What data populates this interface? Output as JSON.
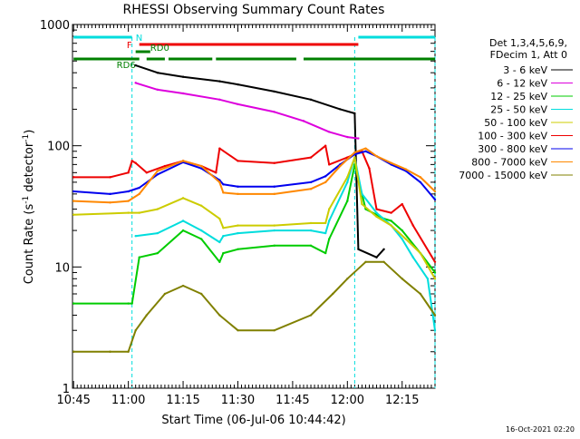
{
  "chart_data": {
    "type": "line",
    "title": "RHESSI Observing Summary Count Rates",
    "xlabel": "Start Time (06-Jul-06 10:44:42)",
    "ylabel_main": "Count Rate (s",
    "ylabel_sup1": "-1",
    "ylabel_mid": " detector",
    "ylabel_sup2": "-1",
    "ylabel_end": ")",
    "footer": "16-Oct-2021 02:20",
    "y_scale": "log",
    "ylim": [
      1,
      1000
    ],
    "xlim": [
      "10:44:42",
      "12:24:00"
    ],
    "x_ticks": [
      {
        "t": "10:45",
        "label": "10:45"
      },
      {
        "t": "11:00",
        "label": "11:00"
      },
      {
        "t": "11:15",
        "label": "11:15"
      },
      {
        "t": "11:30",
        "label": "11:30"
      },
      {
        "t": "11:45",
        "label": "11:45"
      },
      {
        "t": "12:00",
        "label": "12:00"
      },
      {
        "t": "12:15",
        "label": "12:15"
      }
    ],
    "y_ticks": [
      {
        "v": 1,
        "label": "1"
      },
      {
        "v": 10,
        "label": "10"
      },
      {
        "v": 100,
        "label": "100"
      },
      {
        "v": 1000,
        "label": "1000"
      }
    ],
    "legend_header": [
      "Det 1,3,4,5,6,9,",
      "FDecim 1, Att 0"
    ],
    "legend_position": "right",
    "series": [
      {
        "name": "3 - 6 keV",
        "color": "#000000",
        "points": [
          [
            "11:02",
            460
          ],
          [
            "11:08",
            400
          ],
          [
            "11:15",
            370
          ],
          [
            "11:25",
            340
          ],
          [
            "11:30",
            320
          ],
          [
            "11:40",
            280
          ],
          [
            "11:50",
            240
          ],
          [
            "11:58",
            200
          ],
          [
            "12:02",
            185
          ],
          [
            "12:03",
            14
          ],
          [
            "12:08",
            12
          ],
          [
            "12:10",
            14
          ]
        ]
      },
      {
        "name": "6 - 12 keV",
        "color": "#dd00dd",
        "points": [
          [
            "11:02",
            330
          ],
          [
            "11:08",
            290
          ],
          [
            "11:15",
            270
          ],
          [
            "11:25",
            240
          ],
          [
            "11:30",
            220
          ],
          [
            "11:40",
            190
          ],
          [
            "11:48",
            160
          ],
          [
            "11:55",
            130
          ],
          [
            "12:00",
            118
          ],
          [
            "12:03",
            115
          ]
        ]
      },
      {
        "name": "12 - 25 keV",
        "color": "#00cc00",
        "points": [
          [
            "10:45",
            5
          ],
          [
            "11:00",
            5
          ],
          [
            "11:01",
            5
          ],
          [
            "11:03",
            12
          ],
          [
            "11:08",
            13
          ],
          [
            "11:15",
            20
          ],
          [
            "11:20",
            17
          ],
          [
            "11:25",
            11
          ],
          [
            "11:26",
            13
          ],
          [
            "11:30",
            14
          ],
          [
            "11:40",
            15
          ],
          [
            "11:50",
            15
          ],
          [
            "11:54",
            13
          ],
          [
            "11:55",
            17
          ],
          [
            "12:00",
            35
          ],
          [
            "12:02",
            70
          ],
          [
            "12:05",
            30
          ],
          [
            "12:08",
            27
          ],
          [
            "12:10",
            25
          ],
          [
            "12:12",
            24
          ],
          [
            "12:15",
            20
          ],
          [
            "12:20",
            13
          ],
          [
            "12:24",
            9
          ]
        ]
      },
      {
        "name": "25 - 50 keV",
        "color": "#00dddd",
        "points": [
          [
            "11:02",
            18
          ],
          [
            "11:08",
            19
          ],
          [
            "11:15",
            24
          ],
          [
            "11:20",
            20
          ],
          [
            "11:25",
            16
          ],
          [
            "11:26",
            18
          ],
          [
            "11:30",
            19
          ],
          [
            "11:40",
            20
          ],
          [
            "11:50",
            20
          ],
          [
            "11:54",
            19
          ],
          [
            "11:55",
            24
          ],
          [
            "12:00",
            50
          ],
          [
            "12:02",
            80
          ],
          [
            "12:04",
            40
          ],
          [
            "12:08",
            28
          ],
          [
            "12:12",
            22
          ],
          [
            "12:15",
            17
          ],
          [
            "12:18",
            12
          ],
          [
            "12:22",
            8
          ],
          [
            "12:24",
            3
          ]
        ]
      },
      {
        "name": "50 - 100 keV",
        "color": "#cccc00",
        "points": [
          [
            "10:45",
            27
          ],
          [
            "11:00",
            28
          ],
          [
            "11:01",
            28
          ],
          [
            "11:03",
            28
          ],
          [
            "11:08",
            30
          ],
          [
            "11:15",
            37
          ],
          [
            "11:20",
            32
          ],
          [
            "11:25",
            25
          ],
          [
            "11:26",
            21
          ],
          [
            "11:30",
            22
          ],
          [
            "11:40",
            22
          ],
          [
            "11:50",
            23
          ],
          [
            "11:54",
            23
          ],
          [
            "11:55",
            30
          ],
          [
            "12:00",
            55
          ],
          [
            "12:02",
            80
          ],
          [
            "12:04",
            33
          ],
          [
            "12:08",
            26
          ],
          [
            "12:12",
            22
          ],
          [
            "12:16",
            17
          ],
          [
            "12:20",
            13
          ],
          [
            "12:24",
            8
          ]
        ]
      },
      {
        "name": "100 - 300 keV",
        "color": "#ee0000",
        "points": [
          [
            "10:45",
            55
          ],
          [
            "10:55",
            55
          ],
          [
            "11:00",
            60
          ],
          [
            "11:01",
            75
          ],
          [
            "11:02",
            72
          ],
          [
            "11:05",
            60
          ],
          [
            "11:10",
            68
          ],
          [
            "11:15",
            75
          ],
          [
            "11:20",
            68
          ],
          [
            "11:24",
            60
          ],
          [
            "11:25",
            95
          ],
          [
            "11:30",
            75
          ],
          [
            "11:40",
            72
          ],
          [
            "11:50",
            80
          ],
          [
            "11:54",
            100
          ],
          [
            "11:55",
            70
          ],
          [
            "12:00",
            80
          ],
          [
            "12:04",
            90
          ],
          [
            "12:06",
            65
          ],
          [
            "12:08",
            30
          ],
          [
            "12:12",
            28
          ],
          [
            "12:15",
            33
          ],
          [
            "12:18",
            22
          ],
          [
            "12:24",
            11
          ]
        ]
      },
      {
        "name": "300 - 800 keV",
        "color": "#0000ee",
        "points": [
          [
            "10:45",
            42
          ],
          [
            "10:55",
            40
          ],
          [
            "11:00",
            42
          ],
          [
            "11:03",
            45
          ],
          [
            "11:08",
            58
          ],
          [
            "11:15",
            73
          ],
          [
            "11:20",
            65
          ],
          [
            "11:25",
            52
          ],
          [
            "11:26",
            48
          ],
          [
            "11:30",
            46
          ],
          [
            "11:40",
            46
          ],
          [
            "11:50",
            50
          ],
          [
            "11:54",
            56
          ],
          [
            "11:58",
            70
          ],
          [
            "12:02",
            85
          ],
          [
            "12:05",
            90
          ],
          [
            "12:08",
            82
          ],
          [
            "12:12",
            70
          ],
          [
            "12:16",
            62
          ],
          [
            "12:20",
            50
          ],
          [
            "12:24",
            36
          ]
        ]
      },
      {
        "name": "800 - 7000 keV",
        "color": "#ff8800",
        "points": [
          [
            "10:45",
            35
          ],
          [
            "10:55",
            34
          ],
          [
            "11:00",
            35
          ],
          [
            "11:03",
            40
          ],
          [
            "11:08",
            62
          ],
          [
            "11:15",
            75
          ],
          [
            "11:20",
            68
          ],
          [
            "11:25",
            50
          ],
          [
            "11:26",
            41
          ],
          [
            "11:30",
            40
          ],
          [
            "11:40",
            40
          ],
          [
            "11:50",
            44
          ],
          [
            "11:54",
            50
          ],
          [
            "11:58",
            68
          ],
          [
            "12:02",
            88
          ],
          [
            "12:05",
            95
          ],
          [
            "12:08",
            82
          ],
          [
            "12:12",
            72
          ],
          [
            "12:16",
            64
          ],
          [
            "12:20",
            55
          ],
          [
            "12:24",
            42
          ]
        ]
      },
      {
        "name": "7000 - 15000 keV",
        "color": "#808000",
        "points": [
          [
            "10:45",
            2
          ],
          [
            "10:55",
            2
          ],
          [
            "11:00",
            2
          ],
          [
            "11:02",
            3
          ],
          [
            "11:05",
            4
          ],
          [
            "11:10",
            6
          ],
          [
            "11:15",
            7
          ],
          [
            "11:20",
            6
          ],
          [
            "11:25",
            4
          ],
          [
            "11:30",
            3
          ],
          [
            "11:40",
            3
          ],
          [
            "11:50",
            4
          ],
          [
            "11:56",
            6
          ],
          [
            "12:00",
            8
          ],
          [
            "12:05",
            11
          ],
          [
            "12:10",
            11
          ],
          [
            "12:15",
            8
          ],
          [
            "12:20",
            6
          ],
          [
            "12:24",
            4
          ]
        ]
      }
    ],
    "flags": [
      {
        "label": "N",
        "color": "#00dddd",
        "segments": [
          [
            "10:45",
            "11:01"
          ],
          [
            "12:03",
            "12:24"
          ]
        ]
      },
      {
        "label": "F",
        "color": "#ee0000",
        "segments": [
          [
            "11:03",
            "12:03"
          ]
        ]
      },
      {
        "label": "RD0",
        "color": "#008000",
        "segments": [
          [
            "11:02",
            "11:06"
          ]
        ]
      },
      {
        "label": "RD6",
        "color": "#008000",
        "segments": [
          [
            "10:45",
            "11:03"
          ],
          [
            "11:05",
            "11:10"
          ],
          [
            "11:11",
            "11:23"
          ],
          [
            "11:24",
            "11:46"
          ],
          [
            "11:48",
            "12:24"
          ]
        ]
      }
    ],
    "night_markers": [
      "11:01",
      "12:02",
      "12:24"
    ]
  }
}
